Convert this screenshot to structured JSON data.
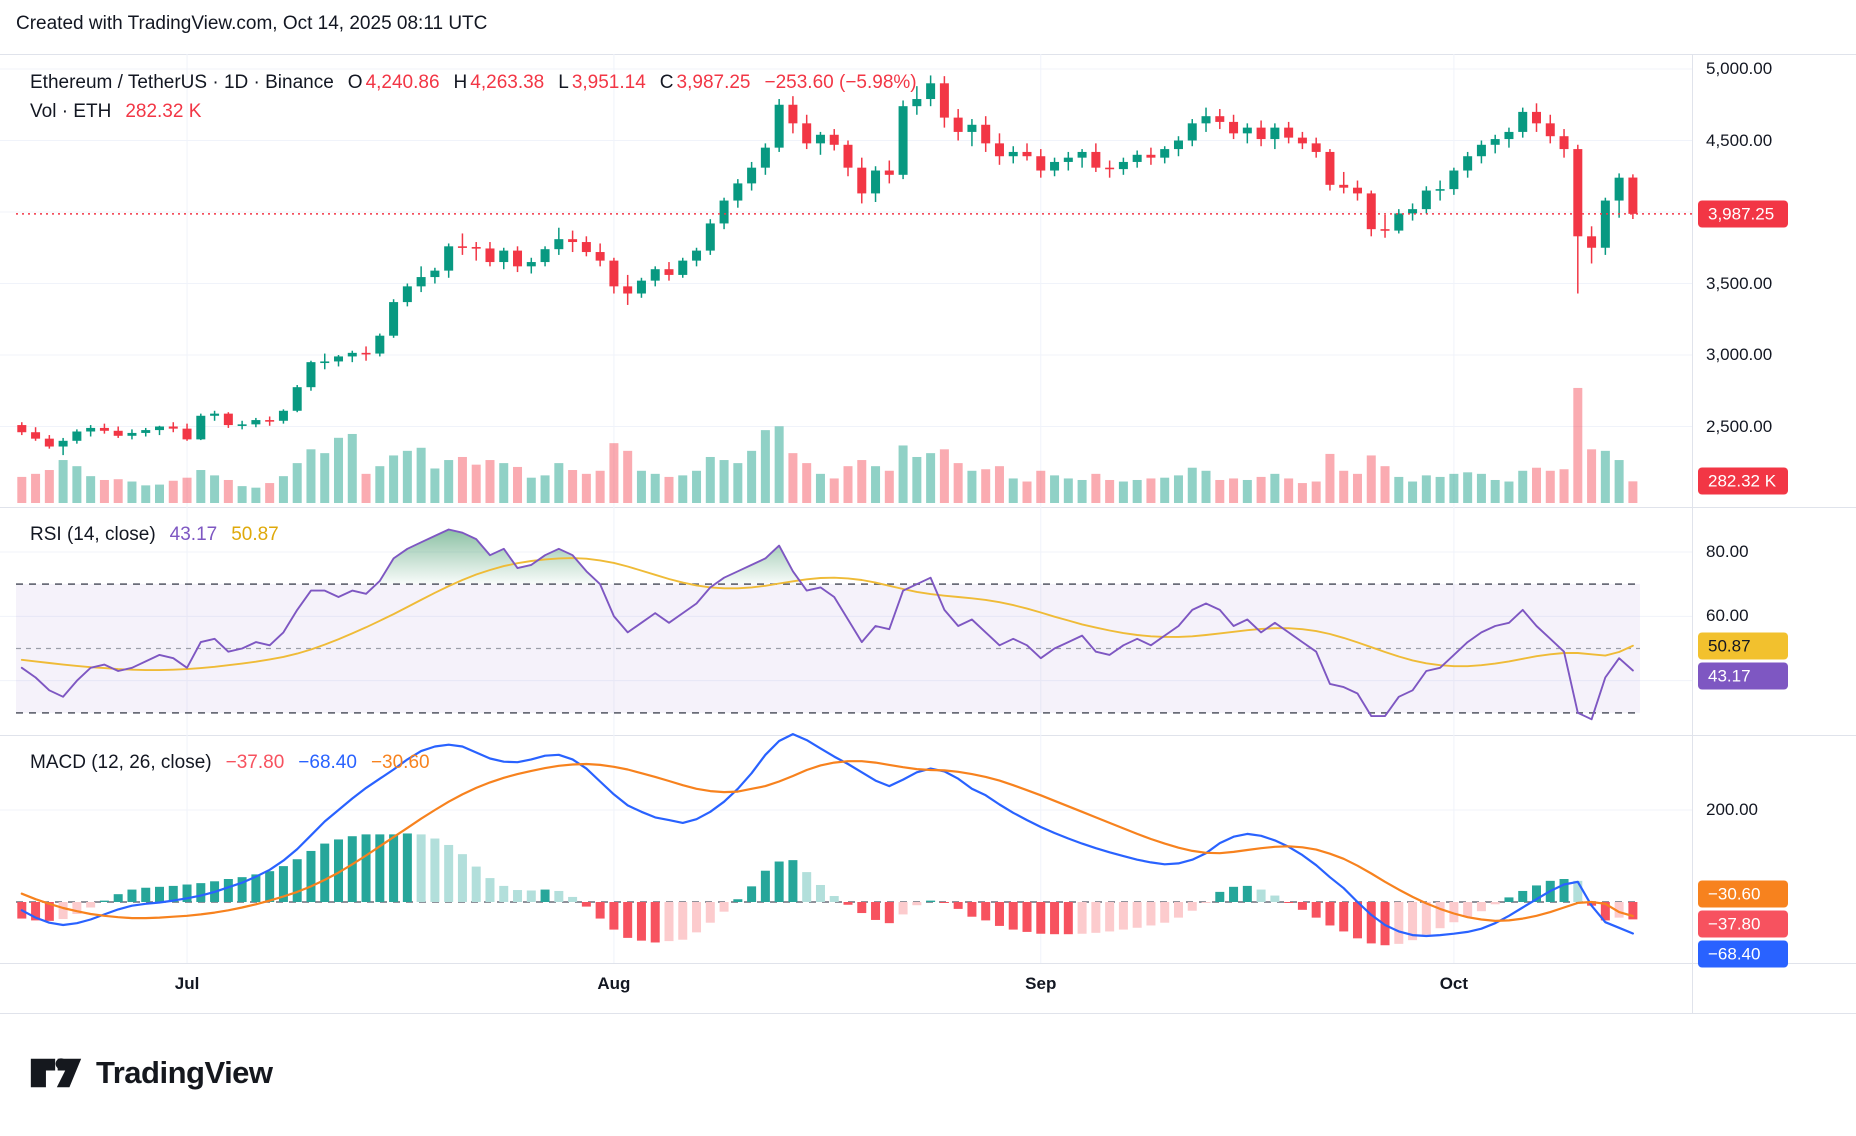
{
  "credit_line": "Created with TradingView.com, Oct 14, 2025 08:11 UTC",
  "symbol_legend": {
    "title": "Ethereum / TetherUS · 1D · Binance",
    "o_label": "O",
    "o_value": "4,240.86",
    "h_label": "H",
    "h_value": "4,263.38",
    "l_label": "L",
    "l_value": "3,951.14",
    "c_label": "C",
    "c_value": "3,987.25",
    "change": "−253.60 (−5.98%)"
  },
  "volume_legend": {
    "label": "Vol · ETH",
    "value": "282.32 K"
  },
  "rsi_legend": {
    "title": "RSI (14, close)",
    "rsi_value": "43.17",
    "ma_value": "50.87"
  },
  "macd_legend": {
    "title": "MACD (12, 26, close)",
    "hist_value": "−37.80",
    "macd_value": "−68.40",
    "signal_value": "−30.60"
  },
  "footer": {
    "brand": "TradingView"
  },
  "colors": {
    "up": "#089981",
    "down": "#F23645",
    "vol_up": "rgba(8,153,129,0.45)",
    "vol_down": "rgba(242,54,69,0.42)",
    "price_line": "#F23645",
    "rsi": "#7E57C2",
    "rsi_ma": "#EFBB37",
    "rsi_band": "rgba(122,89,191,0.08)",
    "rsi_fill_top": "rgba(46,142,90,0.55)",
    "rsi_fill_bottom": "rgba(46,142,90,0.03)",
    "macd": "#2962FF",
    "signal": "#F7821E",
    "hist_up": "#26A69A",
    "hist_up_light": "#B2DFDB",
    "hist_down": "#F7525F",
    "hist_down_light": "#FCCBCD",
    "grid": "#F0F3FA",
    "border": "#E0E3EB",
    "dash": "#6A6D78",
    "dash_mid": "#9A9EA8",
    "text": "#131722",
    "value_red": "#F23645",
    "legend_rsi": "#7E57C2",
    "legend_ma": "#DFA90A",
    "legend_macd": "#2962FF",
    "legend_signal": "#F7821E",
    "legend_hist": "#F7525F"
  },
  "axis": {
    "price_labels": [
      {
        "text": "5,000.00",
        "value": 5000
      },
      {
        "text": "4,500.00",
        "value": 4500
      },
      {
        "text": "3,500.00",
        "value": 3500
      },
      {
        "text": "3,000.00",
        "value": 3000
      },
      {
        "text": "2,500.00",
        "value": 2500
      }
    ],
    "rsi_labels": [
      {
        "text": "80.00",
        "value": 80
      },
      {
        "text": "60.00",
        "value": 60
      }
    ],
    "macd_labels": [
      {
        "text": "200.00",
        "value": 200
      }
    ],
    "badges": [
      {
        "pane": "price",
        "text": "3,987.25",
        "value": 3987.25,
        "bg": "#F23645",
        "fg": "#FFFFFF"
      },
      {
        "pane": "vol",
        "text": "282.32 K",
        "value": 282.32,
        "bg": "#F23645",
        "fg": "#FFFFFF"
      },
      {
        "pane": "rsi",
        "text": "50.87",
        "value": 50.87,
        "bg": "#F2C12E",
        "fg": "#131722"
      },
      {
        "pane": "rsi",
        "text": "43.17",
        "value": 43.17,
        "bg": "#7E57C2",
        "fg": "#FFFFFF"
      },
      {
        "pane": "macd",
        "text": "−30.60",
        "value": -30.6,
        "bg": "#F7821E",
        "fg": "#FFFFFF"
      },
      {
        "pane": "macd",
        "text": "−37.80",
        "value": -37.8,
        "bg": "#F7525F",
        "fg": "#FFFFFF"
      },
      {
        "pane": "macd",
        "text": "−68.40",
        "value": -68.4,
        "bg": "#2962FF",
        "fg": "#FFFFFF"
      }
    ],
    "months": [
      {
        "label": "Jul",
        "index": 12
      },
      {
        "label": "Aug",
        "index": 43
      },
      {
        "label": "Sep",
        "index": 74
      },
      {
        "label": "Oct",
        "index": 104
      }
    ]
  },
  "chart_data": {
    "type": "candlestick+volume+rsi+macd",
    "symbol": "ETHUSDT",
    "interval": "1D",
    "exchange": "Binance",
    "last_price": 3987.25,
    "price_gridlines": [
      5000,
      4500,
      4000,
      3500,
      3000,
      2500
    ],
    "rsi_levels": {
      "upper": 70,
      "middle": 50,
      "lower": 30
    },
    "macd_gridline": 200,
    "candles_ohlcv": [
      [
        2510,
        2530,
        2440,
        2460,
        340
      ],
      [
        2460,
        2495,
        2400,
        2415,
        380
      ],
      [
        2415,
        2440,
        2345,
        2360,
        430
      ],
      [
        2360,
        2420,
        2300,
        2400,
        560
      ],
      [
        2400,
        2480,
        2380,
        2465,
        480
      ],
      [
        2465,
        2510,
        2430,
        2490,
        350
      ],
      [
        2490,
        2520,
        2450,
        2470,
        300
      ],
      [
        2470,
        2500,
        2420,
        2435,
        310
      ],
      [
        2435,
        2480,
        2410,
        2455,
        280
      ],
      [
        2455,
        2490,
        2430,
        2475,
        230
      ],
      [
        2475,
        2505,
        2440,
        2500,
        240
      ],
      [
        2500,
        2530,
        2460,
        2485,
        290
      ],
      [
        2485,
        2520,
        2400,
        2410,
        330
      ],
      [
        2410,
        2590,
        2405,
        2575,
        430
      ],
      [
        2575,
        2610,
        2540,
        2590,
        360
      ],
      [
        2590,
        2600,
        2490,
        2510,
        300
      ],
      [
        2510,
        2540,
        2480,
        2515,
        220
      ],
      [
        2515,
        2560,
        2495,
        2545,
        200
      ],
      [
        2545,
        2570,
        2505,
        2540,
        260
      ],
      [
        2540,
        2620,
        2520,
        2610,
        350
      ],
      [
        2610,
        2790,
        2600,
        2775,
        520
      ],
      [
        2775,
        2960,
        2750,
        2950,
        700
      ],
      [
        2950,
        3010,
        2900,
        2955,
        650
      ],
      [
        2955,
        3000,
        2920,
        2990,
        850
      ],
      [
        2990,
        3030,
        2950,
        3015,
        900
      ],
      [
        3015,
        3060,
        2960,
        3010,
        380
      ],
      [
        3010,
        3150,
        2990,
        3135,
        480
      ],
      [
        3135,
        3390,
        3120,
        3370,
        620
      ],
      [
        3370,
        3500,
        3340,
        3480,
        680
      ],
      [
        3480,
        3620,
        3440,
        3545,
        720
      ],
      [
        3545,
        3610,
        3500,
        3590,
        450
      ],
      [
        3590,
        3780,
        3540,
        3760,
        560
      ],
      [
        3760,
        3850,
        3700,
        3755,
        600
      ],
      [
        3755,
        3790,
        3660,
        3745,
        500
      ],
      [
        3745,
        3790,
        3620,
        3650,
        560
      ],
      [
        3650,
        3750,
        3600,
        3730,
        520
      ],
      [
        3730,
        3760,
        3580,
        3620,
        470
      ],
      [
        3620,
        3680,
        3570,
        3650,
        330
      ],
      [
        3650,
        3760,
        3620,
        3740,
        360
      ],
      [
        3740,
        3890,
        3700,
        3810,
        520
      ],
      [
        3810,
        3870,
        3720,
        3790,
        430
      ],
      [
        3790,
        3830,
        3690,
        3720,
        380
      ],
      [
        3720,
        3780,
        3620,
        3660,
        420
      ],
      [
        3660,
        3680,
        3430,
        3480,
        780
      ],
      [
        3480,
        3560,
        3350,
        3430,
        680
      ],
      [
        3430,
        3540,
        3400,
        3520,
        420
      ],
      [
        3520,
        3620,
        3480,
        3600,
        380
      ],
      [
        3600,
        3650,
        3520,
        3560,
        340
      ],
      [
        3560,
        3680,
        3540,
        3660,
        360
      ],
      [
        3660,
        3750,
        3620,
        3730,
        420
      ],
      [
        3730,
        3950,
        3700,
        3920,
        600
      ],
      [
        3920,
        4100,
        3880,
        4080,
        560
      ],
      [
        4080,
        4230,
        4030,
        4200,
        520
      ],
      [
        4200,
        4350,
        4150,
        4310,
        680
      ],
      [
        4310,
        4480,
        4260,
        4450,
        950
      ],
      [
        4450,
        4790,
        4420,
        4750,
        1000
      ],
      [
        4750,
        4810,
        4550,
        4620,
        650
      ],
      [
        4620,
        4680,
        4440,
        4480,
        520
      ],
      [
        4480,
        4560,
        4400,
        4540,
        380
      ],
      [
        4540,
        4580,
        4430,
        4470,
        320
      ],
      [
        4470,
        4500,
        4250,
        4310,
        480
      ],
      [
        4310,
        4380,
        4060,
        4130,
        560
      ],
      [
        4130,
        4320,
        4070,
        4290,
        480
      ],
      [
        4290,
        4360,
        4200,
        4260,
        420
      ],
      [
        4260,
        4780,
        4230,
        4740,
        750
      ],
      [
        4740,
        4880,
        4680,
        4790,
        600
      ],
      [
        4790,
        4955,
        4740,
        4900,
        650
      ],
      [
        4900,
        4950,
        4590,
        4660,
        700
      ],
      [
        4660,
        4720,
        4500,
        4560,
        520
      ],
      [
        4560,
        4650,
        4460,
        4610,
        420
      ],
      [
        4610,
        4670,
        4420,
        4480,
        440
      ],
      [
        4480,
        4550,
        4330,
        4390,
        480
      ],
      [
        4390,
        4460,
        4340,
        4420,
        320
      ],
      [
        4420,
        4480,
        4360,
        4390,
        280
      ],
      [
        4390,
        4440,
        4240,
        4290,
        420
      ],
      [
        4290,
        4380,
        4250,
        4350,
        360
      ],
      [
        4350,
        4420,
        4290,
        4380,
        320
      ],
      [
        4380,
        4440,
        4310,
        4420,
        300
      ],
      [
        4420,
        4480,
        4280,
        4310,
        380
      ],
      [
        4310,
        4360,
        4240,
        4300,
        300
      ],
      [
        4300,
        4380,
        4260,
        4350,
        280
      ],
      [
        4350,
        4430,
        4310,
        4400,
        300
      ],
      [
        4400,
        4450,
        4330,
        4380,
        320
      ],
      [
        4380,
        4460,
        4340,
        4440,
        330
      ],
      [
        4440,
        4530,
        4390,
        4500,
        360
      ],
      [
        4500,
        4650,
        4460,
        4620,
        460
      ],
      [
        4620,
        4730,
        4560,
        4670,
        420
      ],
      [
        4670,
        4720,
        4580,
        4630,
        300
      ],
      [
        4630,
        4680,
        4510,
        4550,
        320
      ],
      [
        4550,
        4620,
        4480,
        4590,
        300
      ],
      [
        4590,
        4640,
        4460,
        4510,
        340
      ],
      [
        4510,
        4620,
        4440,
        4590,
        380
      ],
      [
        4590,
        4630,
        4480,
        4520,
        320
      ],
      [
        4520,
        4560,
        4440,
        4480,
        260
      ],
      [
        4480,
        4520,
        4380,
        4420,
        280
      ],
      [
        4420,
        4440,
        4150,
        4190,
        640
      ],
      [
        4190,
        4280,
        4130,
        4170,
        420
      ],
      [
        4170,
        4220,
        4080,
        4130,
        380
      ],
      [
        4130,
        4150,
        3830,
        3880,
        620
      ],
      [
        3880,
        3980,
        3820,
        3870,
        480
      ],
      [
        3870,
        4020,
        3850,
        3990,
        340
      ],
      [
        3990,
        4060,
        3940,
        4020,
        280
      ],
      [
        4020,
        4180,
        3990,
        4150,
        360
      ],
      [
        4150,
        4220,
        4080,
        4160,
        340
      ],
      [
        4160,
        4310,
        4120,
        4290,
        380
      ],
      [
        4290,
        4420,
        4240,
        4390,
        400
      ],
      [
        4390,
        4500,
        4340,
        4470,
        380
      ],
      [
        4470,
        4540,
        4410,
        4510,
        300
      ],
      [
        4510,
        4590,
        4450,
        4560,
        280
      ],
      [
        4560,
        4730,
        4520,
        4700,
        420
      ],
      [
        4700,
        4760,
        4560,
        4620,
        460
      ],
      [
        4620,
        4680,
        4480,
        4530,
        420
      ],
      [
        4530,
        4580,
        4380,
        4440,
        440
      ],
      [
        4440,
        4470,
        3430,
        3830,
        1500
      ],
      [
        3830,
        3900,
        3640,
        3750,
        700
      ],
      [
        3750,
        4100,
        3700,
        4080,
        680
      ],
      [
        4080,
        4270,
        3960,
        4240,
        560
      ],
      [
        4240.86,
        4263.38,
        3951.14,
        3987.25,
        282.32
      ]
    ],
    "rsi": [
      44,
      41,
      37,
      35,
      40,
      44,
      45,
      43,
      44,
      46,
      48,
      47,
      44,
      52,
      53,
      49,
      50,
      52,
      51,
      55,
      62,
      68,
      68,
      66,
      68,
      67,
      71,
      78,
      81,
      83,
      85,
      87,
      86,
      84,
      79,
      81,
      75,
      76,
      79,
      81,
      79,
      74,
      70,
      60,
      55,
      58,
      61,
      58,
      61,
      64,
      69,
      72,
      74,
      76,
      78,
      82,
      74,
      68,
      69,
      66,
      59,
      52,
      57,
      56,
      68,
      70,
      72,
      62,
      57,
      59,
      55,
      51,
      53,
      51,
      47,
      50,
      52,
      54,
      49,
      48,
      51,
      53,
      51,
      54,
      57,
      62,
      64,
      62,
      57,
      59,
      55,
      58,
      55,
      52,
      49,
      39,
      38,
      36,
      29,
      29,
      35,
      37,
      43,
      44,
      48,
      52,
      55,
      57,
      58,
      62,
      57,
      53,
      49,
      30,
      28,
      41,
      47,
      43.17
    ],
    "rsi_ma": [
      46.5,
      46,
      45.5,
      45,
      44.6,
      44.2,
      43.9,
      43.6,
      43.4,
      43.3,
      43.3,
      43.4,
      43.6,
      43.9,
      44.3,
      44.8,
      45.3,
      45.9,
      46.6,
      47.4,
      48.4,
      49.7,
      51.2,
      52.9,
      54.7,
      56.6,
      58.6,
      60.7,
      62.9,
      65.1,
      67.3,
      69.4,
      71.3,
      73,
      74.4,
      75.6,
      76.5,
      77.2,
      77.7,
      78,
      78.1,
      77.9,
      77.4,
      76.6,
      75.5,
      74.2,
      72.9,
      71.6,
      70.5,
      69.6,
      69,
      68.7,
      68.7,
      69,
      69.5,
      70.2,
      70.9,
      71.5,
      71.9,
      72,
      71.8,
      71.3,
      70.5,
      69.5,
      68.5,
      67.6,
      66.9,
      66.4,
      66,
      65.6,
      65.1,
      64.4,
      63.5,
      62.4,
      61.2,
      59.9,
      58.7,
      57.5,
      56.5,
      55.6,
      54.8,
      54.2,
      53.8,
      53.6,
      53.6,
      53.8,
      54.2,
      54.7,
      55.2,
      55.7,
      56.1,
      56.3,
      56.3,
      56,
      55.4,
      54.5,
      53.3,
      51.9,
      50.4,
      48.9,
      47.5,
      46.3,
      45.4,
      44.8,
      44.5,
      44.5,
      44.8,
      45.3,
      46,
      46.8,
      47.6,
      48.2,
      48.6,
      48.6,
      48.2,
      47.8,
      48.9,
      50.87
    ],
    "macd": [
      -18,
      -34,
      -45,
      -50,
      -46,
      -38,
      -27,
      -16,
      -8,
      -4,
      -1,
      3,
      8,
      14,
      22,
      32,
      42,
      55,
      70,
      90,
      115,
      145,
      175,
      200,
      225,
      248,
      268,
      288,
      310,
      328,
      338,
      342,
      338,
      325,
      312,
      305,
      304,
      310,
      318,
      320,
      310,
      290,
      262,
      234,
      210,
      196,
      184,
      178,
      172,
      180,
      196,
      218,
      246,
      280,
      320,
      350,
      365,
      352,
      334,
      316,
      300,
      282,
      264,
      252,
      266,
      282,
      290,
      284,
      268,
      246,
      232,
      212,
      194,
      178,
      163,
      150,
      138,
      127,
      117,
      108,
      100,
      92,
      86,
      82,
      84,
      92,
      106,
      128,
      142,
      148,
      144,
      134,
      120,
      102,
      80,
      54,
      30,
      0,
      -28,
      -50,
      -64,
      -72,
      -74,
      -72,
      -69,
      -65,
      -58,
      -46,
      -30,
      -12,
      6,
      24,
      38,
      44,
      -8,
      -44,
      -56,
      -68.4
    ],
    "macd_signal": [
      18,
      6,
      -4,
      -13,
      -20,
      -26,
      -30,
      -33,
      -35,
      -35,
      -34,
      -32,
      -30,
      -27,
      -23,
      -18,
      -12,
      -5,
      3,
      12,
      22,
      34,
      48,
      64,
      82,
      101,
      121,
      141,
      161,
      181,
      200,
      218,
      234,
      248,
      260,
      270,
      278,
      285,
      291,
      296,
      299,
      300,
      298,
      294,
      288,
      280,
      272,
      263,
      254,
      246,
      241,
      239,
      240,
      246,
      252,
      262,
      274,
      287,
      297,
      303,
      306,
      306,
      303,
      298,
      293,
      289,
      287,
      286,
      283,
      278,
      272,
      264,
      254,
      243,
      232,
      220,
      208,
      196,
      184,
      172,
      160,
      148,
      137,
      127,
      118,
      111,
      107,
      106,
      109,
      113,
      117,
      120,
      121,
      119,
      114,
      105,
      94,
      79,
      62,
      44,
      27,
      11,
      -3,
      -15,
      -25,
      -33,
      -38,
      -41,
      -40,
      -36,
      -30,
      -22,
      -12,
      -2,
      0,
      -4,
      -22,
      -30.6
    ],
    "x_axis_months": [
      "Jul",
      "Aug",
      "Sep",
      "Oct"
    ]
  }
}
